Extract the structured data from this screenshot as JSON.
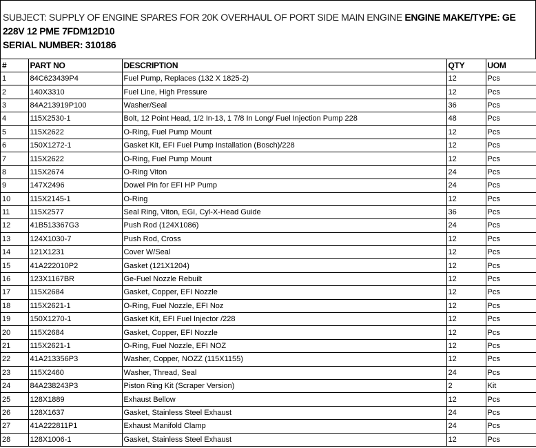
{
  "subject": {
    "subject_text": "SUBJECT: SUPPLY OF ENGINE SPARES FOR 20K OVERHAUL OF PORT SIDE MAIN ENGINE",
    "engine_make_type": "ENGINE MAKE/TYPE: GE 228V 12 PME 7FDM12D10",
    "serial_number": "SERIAL NUMBER: 310186"
  },
  "table": {
    "headers": [
      "#",
      "PART NO",
      "DESCRIPTION",
      "QTY",
      "UOM"
    ],
    "rows": [
      [
        "1",
        "84C623439P4",
        "Fuel Pump, Replaces (132 X 1825-2)",
        "12",
        "Pcs"
      ],
      [
        "2",
        "140X3310",
        "Fuel Line, High Pressure",
        "12",
        "Pcs"
      ],
      [
        "3",
        "84A213919P100",
        "Washer/Seal",
        "36",
        "Pcs"
      ],
      [
        "4",
        "115X2530-1",
        "Bolt, 12 Point Head, 1/2 In-13, 1 7/8 In Long/ Fuel Injection Pump 228",
        "48",
        "Pcs"
      ],
      [
        "5",
        "115X2622",
        "O-Ring, Fuel Pump Mount",
        "12",
        "Pcs"
      ],
      [
        "6",
        "150X1272-1",
        "Gasket Kit, EFI Fuel Pump Installation (Bosch)/228",
        "12",
        "Pcs"
      ],
      [
        "7",
        "115X2622",
        "O-Ring, Fuel Pump Mount",
        "12",
        "Pcs"
      ],
      [
        "8",
        "115X2674",
        "O-Ring Viton",
        "24",
        "Pcs"
      ],
      [
        "9",
        "147X2496",
        "Dowel Pin for EFI HP Pump",
        "24",
        "Pcs"
      ],
      [
        "10",
        "115X2145-1",
        "O-Ring",
        "12",
        "Pcs"
      ],
      [
        "11",
        "115X2577",
        "Seal Ring, Viton, EGI, Cyl-X-Head Guide",
        "36",
        "Pcs"
      ],
      [
        "12",
        "41B513367G3",
        "Push Rod (124X1086)",
        "24",
        "Pcs"
      ],
      [
        "13",
        "124X1030-7",
        "Push Rod, Cross",
        "12",
        "Pcs"
      ],
      [
        "14",
        "121X1231",
        "Cover W/Seal",
        "12",
        "Pcs"
      ],
      [
        "15",
        "41A222010P2",
        "Gasket (121X1204)",
        "12",
        "Pcs"
      ],
      [
        "16",
        "123X1167BR",
        "Ge-Fuel Nozzle Rebuilt",
        "12",
        "Pcs"
      ],
      [
        "17",
        "115X2684",
        "Gasket, Copper, EFI Nozzle",
        "12",
        "Pcs"
      ],
      [
        "18",
        "115X2621-1",
        "O-Ring, Fuel Nozzle, EFI Noz",
        "12",
        "Pcs"
      ],
      [
        "19",
        "150X1270-1",
        "Gasket Kit, EFI Fuel Injector /228",
        "12",
        "Pcs"
      ],
      [
        "20",
        "115X2684",
        "Gasket, Copper, EFI Nozzle",
        "12",
        "Pcs"
      ],
      [
        "21",
        "115X2621-1",
        "O-Ring, Fuel Nozzle, EFI NOZ",
        "12",
        "Pcs"
      ],
      [
        "22",
        "41A213356P3",
        "Washer, Copper, NOZZ (115X1155)",
        "12",
        "Pcs"
      ],
      [
        "23",
        "115X2460",
        "Washer, Thread, Seal",
        "24",
        "Pcs"
      ],
      [
        "24",
        "84A238243P3",
        "Piston Ring Kit (Scraper Version)",
        "2",
        "Kit"
      ],
      [
        "25",
        "128X1889",
        "Exhaust Bellow",
        "12",
        "Pcs"
      ],
      [
        "26",
        "128X1637",
        "Gasket, Stainless Steel Exhaust",
        "24",
        "Pcs"
      ],
      [
        "27",
        "41A222811P1",
        "Exhaust Manifold Clamp",
        "24",
        "Pcs"
      ],
      [
        "28",
        "128X1006-1",
        "Gasket, Stainless Steel Exhaust",
        "12",
        "Pcs"
      ]
    ]
  }
}
